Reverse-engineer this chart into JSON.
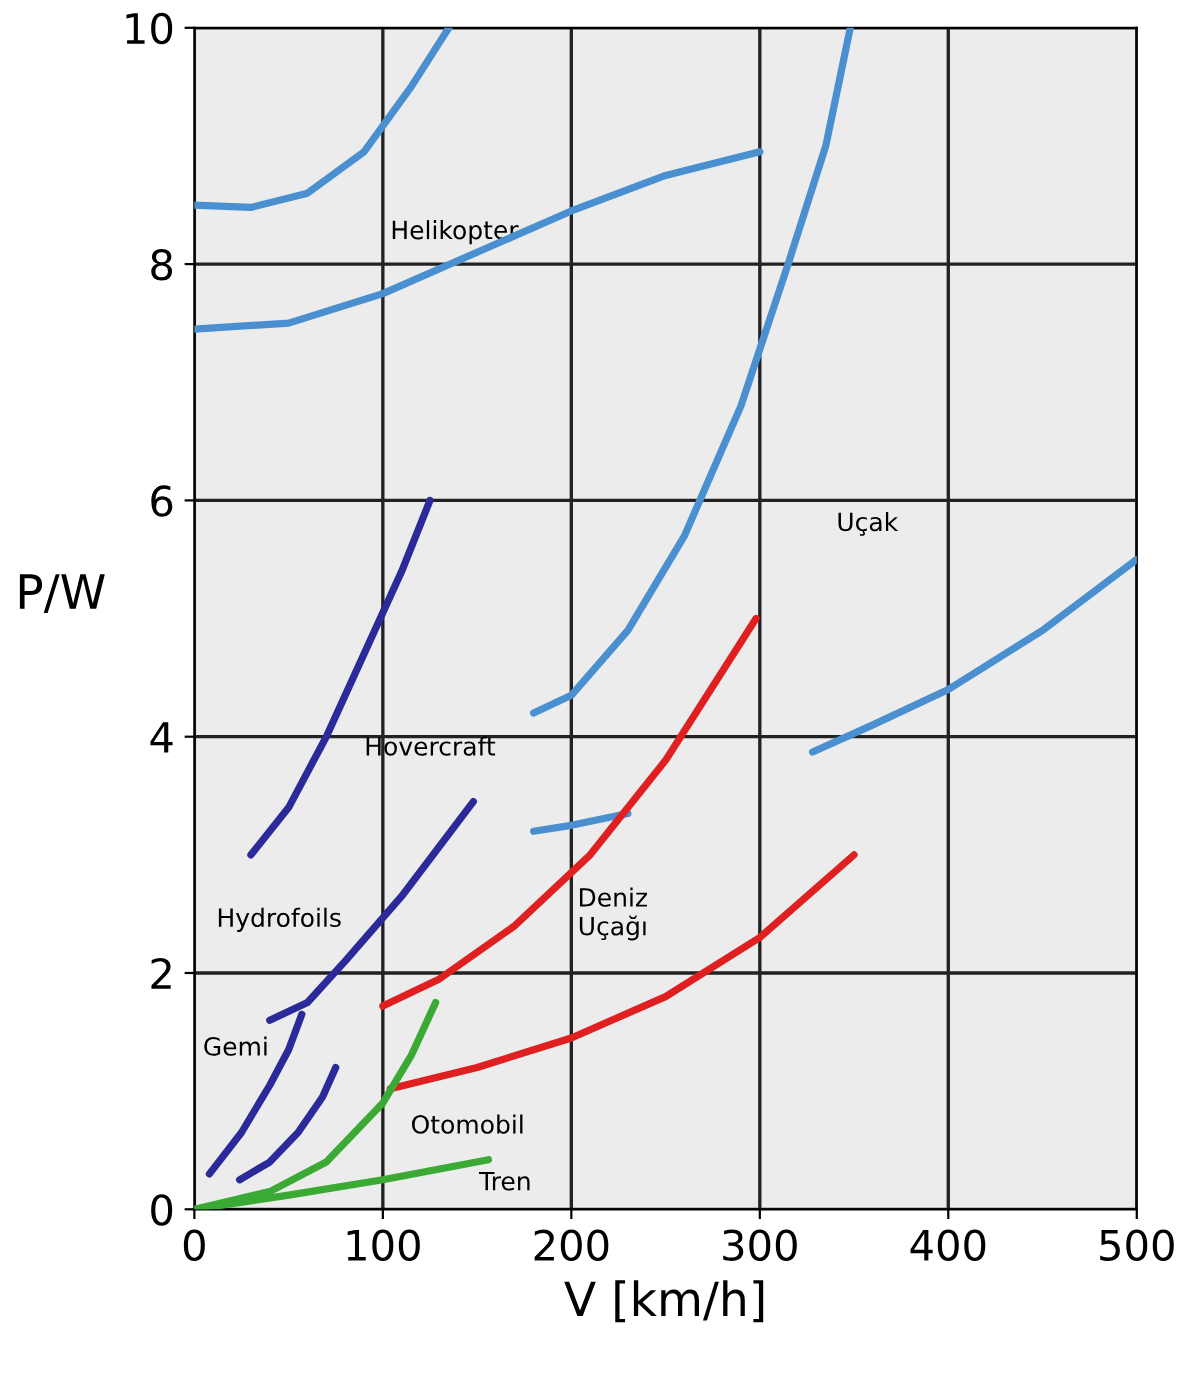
{
  "chart_data": {
    "type": "line",
    "xlabel": "V [km/h]",
    "ylabel": "P/W",
    "xlim": [
      0,
      500
    ],
    "ylim": [
      0,
      10
    ],
    "xticks": [
      0,
      100,
      200,
      300,
      400,
      500
    ],
    "yticks": [
      0,
      2,
      4,
      6,
      8,
      10
    ],
    "grid": true,
    "line_style": "solid",
    "marker": "none",
    "series": [
      {
        "color": "#4a8fd0",
        "x": [
          0,
          30,
          60,
          90,
          115,
          135
        ],
        "values": [
          8.5,
          8.48,
          8.6,
          8.95,
          9.5,
          10
        ]
      },
      {
        "color": "#4a8fd0",
        "x": [
          0,
          50,
          100,
          150,
          200,
          250,
          300
        ],
        "values": [
          7.45,
          7.5,
          7.75,
          8.1,
          8.45,
          8.75,
          8.95
        ]
      },
      {
        "color": "#4a8fd0",
        "x": [
          180,
          200,
          230,
          260,
          290,
          315,
          335,
          348
        ],
        "values": [
          4.2,
          4.35,
          4.9,
          5.7,
          6.8,
          8.0,
          9.0,
          10
        ]
      },
      {
        "color": "#4a8fd0",
        "x": [
          328,
          360,
          400,
          450,
          500
        ],
        "values": [
          3.87,
          4.1,
          4.4,
          4.9,
          5.5
        ]
      },
      {
        "color": "#4a8fd0",
        "x": [
          180,
          200,
          230
        ],
        "values": [
          3.2,
          3.25,
          3.35
        ]
      },
      {
        "color": "#2a2a9a",
        "x": [
          30,
          50,
          70,
          90,
          110,
          125
        ],
        "values": [
          3.0,
          3.4,
          4.0,
          4.7,
          5.4,
          6.0
        ]
      },
      {
        "color": "#2a2a9a",
        "x": [
          40,
          60,
          80,
          110,
          148
        ],
        "values": [
          1.6,
          1.75,
          2.1,
          2.65,
          3.45
        ]
      },
      {
        "color": "#2a2a9a",
        "x": [
          8,
          25,
          40,
          50,
          57
        ],
        "values": [
          0.3,
          0.65,
          1.05,
          1.35,
          1.65
        ]
      },
      {
        "color": "#2a2a9a",
        "x": [
          24,
          40,
          55,
          68,
          75
        ],
        "values": [
          0.25,
          0.4,
          0.65,
          0.95,
          1.2
        ]
      },
      {
        "color": "#e02020",
        "x": [
          100,
          130,
          170,
          210,
          250,
          298
        ],
        "values": [
          1.72,
          1.95,
          2.4,
          3.0,
          3.8,
          5.0
        ]
      },
      {
        "color": "#e02020",
        "x": [
          104,
          150,
          200,
          250,
          300,
          350
        ],
        "values": [
          1.02,
          1.2,
          1.45,
          1.8,
          2.3,
          3.0
        ]
      },
      {
        "color": "#3aaa35",
        "x": [
          0,
          40,
          70,
          100,
          115,
          128
        ],
        "values": [
          0,
          0.15,
          0.4,
          0.9,
          1.3,
          1.75
        ]
      },
      {
        "color": "#3aaa35",
        "x": [
          0,
          50,
          100,
          156
        ],
        "values": [
          0,
          0.12,
          0.25,
          0.42
        ]
      }
    ],
    "annotations": [
      "Helikopter",
      "Uçak",
      "Hovercraft",
      "Hydrofoils",
      "Deniz\nUçağı",
      "Gemi",
      "Otomobil",
      "Tren"
    ]
  }
}
